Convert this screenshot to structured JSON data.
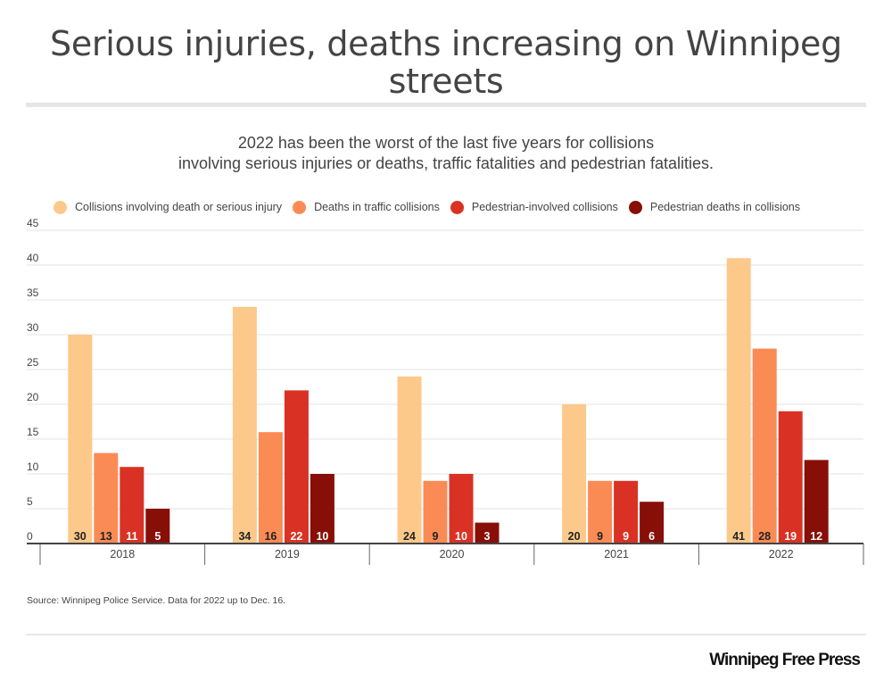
{
  "header": {
    "title_line1": "Serious injuries, deaths increasing on Winnipeg",
    "title_line2": "streets",
    "subtitle_line1": "2022 has been the worst of the last five years for collisions",
    "subtitle_line2": "involving serious injuries or deaths, traffic fatalities and pedestrian fatalities."
  },
  "chart_data": {
    "type": "bar",
    "title": "Serious injuries, deaths increasing on Winnipeg streets",
    "subtitle": "2022 has been the worst of the last five years for collisions involving serious injuries or deaths, traffic fatalities and pedestrian fatalities.",
    "categories": [
      "2018",
      "2019",
      "2020",
      "2021",
      "2022"
    ],
    "series": [
      {
        "name": "Collisions involving death or serious injury",
        "color": "#fcc98b",
        "label_color": "#222222",
        "values": [
          30,
          34,
          24,
          20,
          41
        ]
      },
      {
        "name": "Deaths in traffic collisions",
        "color": "#fb8b55",
        "label_color": "#222222",
        "values": [
          13,
          16,
          9,
          9,
          28
        ]
      },
      {
        "name": "Pedestrian-involved collisions",
        "color": "#d93224",
        "label_color": "#ffffff",
        "values": [
          11,
          22,
          10,
          9,
          19
        ]
      },
      {
        "name": "Pedestrian deaths in collisions",
        "color": "#880f07",
        "label_color": "#ffffff",
        "values": [
          5,
          10,
          3,
          6,
          12
        ]
      }
    ],
    "xlabel": "",
    "ylabel": "",
    "ylim": [
      0,
      45
    ],
    "yticks": [
      0,
      5,
      10,
      15,
      20,
      25,
      30,
      35,
      40,
      45
    ],
    "grid": true,
    "legend_position": "top-left",
    "data_labels": "inside-bottom"
  },
  "footer": {
    "source": "Source: Winnipeg Police Service. Data for 2022 up to Dec. 16.",
    "logo_text": "Winnipeg Free Press"
  }
}
